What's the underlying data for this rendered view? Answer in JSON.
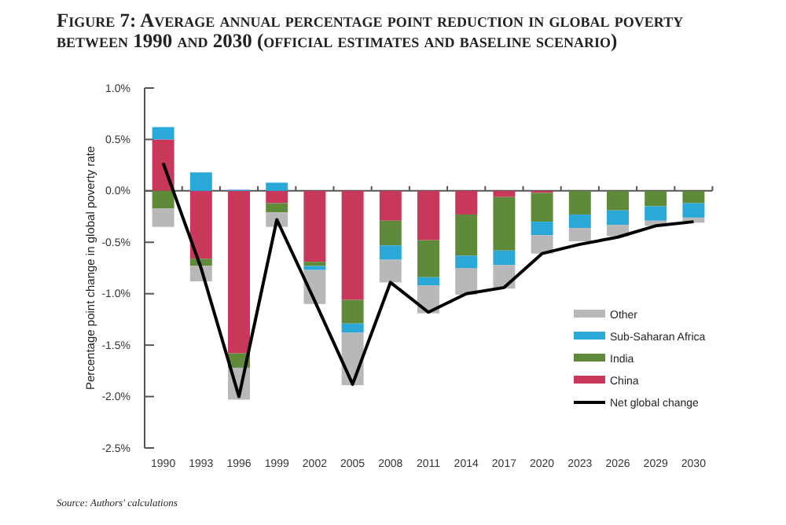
{
  "chart_data": {
    "type": "bar",
    "title": "Figure 7: Average annual percentage point reduction in global poverty between 1990 and 2030 (official estimates and baseline scenario)",
    "ylabel": "Percentage point change in global poverty rate",
    "annotations": [
      "Source: Authors' calculations"
    ],
    "categories": [
      "1990",
      "1993",
      "1996",
      "1999",
      "2002",
      "2005",
      "2008",
      "2011",
      "2014",
      "2017",
      "2020",
      "2023",
      "2026",
      "2029",
      "2030"
    ],
    "stacked": true,
    "legend": "bottom right",
    "marker": "none",
    "line_style": "solid",
    "ylim": [
      -2.5,
      1.0
    ],
    "yticks": [
      {
        "value": -2.5,
        "label": "-2.5%"
      },
      {
        "value": -2.0,
        "label": "-2.0%"
      },
      {
        "value": -1.5,
        "label": "-1.5%"
      },
      {
        "value": -1.0,
        "label": "-1.0%"
      },
      {
        "value": -0.5,
        "label": "-0.5%"
      },
      {
        "value": 0,
        "label": "0.0%"
      },
      {
        "value": 0.5,
        "label": "0.5%"
      },
      {
        "value": 1.0,
        "label": "1.0%"
      }
    ],
    "series": [
      {
        "name": "China",
        "color": "#c8385a",
        "values": [
          0.5,
          -0.66,
          -1.58,
          -0.12,
          -0.69,
          -1.06,
          -0.29,
          -0.48,
          -0.23,
          -0.06,
          -0.02,
          0,
          0,
          0,
          0
        ]
      },
      {
        "name": "India",
        "color": "#5e8a3a",
        "values": [
          -0.17,
          -0.07,
          -0.14,
          -0.09,
          -0.04,
          -0.23,
          -0.24,
          -0.36,
          -0.4,
          -0.52,
          -0.28,
          -0.23,
          -0.19,
          -0.15,
          -0.12
        ]
      },
      {
        "name": "Sub-Saharan Africa",
        "color": "#2aa8d8",
        "values": [
          0.12,
          0.18,
          0.01,
          0.08,
          -0.04,
          -0.09,
          -0.14,
          -0.08,
          -0.12,
          -0.14,
          -0.13,
          -0.13,
          -0.14,
          -0.14,
          -0.14
        ]
      },
      {
        "name": "Other",
        "color": "#b8b8b8",
        "values": [
          -0.18,
          -0.15,
          -0.31,
          -0.14,
          -0.33,
          -0.51,
          -0.22,
          -0.27,
          -0.26,
          -0.23,
          -0.18,
          -0.13,
          -0.11,
          -0.05,
          -0.05
        ]
      },
      {
        "name": "Net global change",
        "type": "line",
        "color": "#000000",
        "values": [
          0.27,
          -0.75,
          -2.0,
          -0.28,
          -1.07,
          -1.88,
          -0.89,
          -1.18,
          -1.0,
          -0.94,
          -0.61,
          -0.52,
          -0.45,
          -0.34,
          -0.3
        ]
      }
    ]
  }
}
